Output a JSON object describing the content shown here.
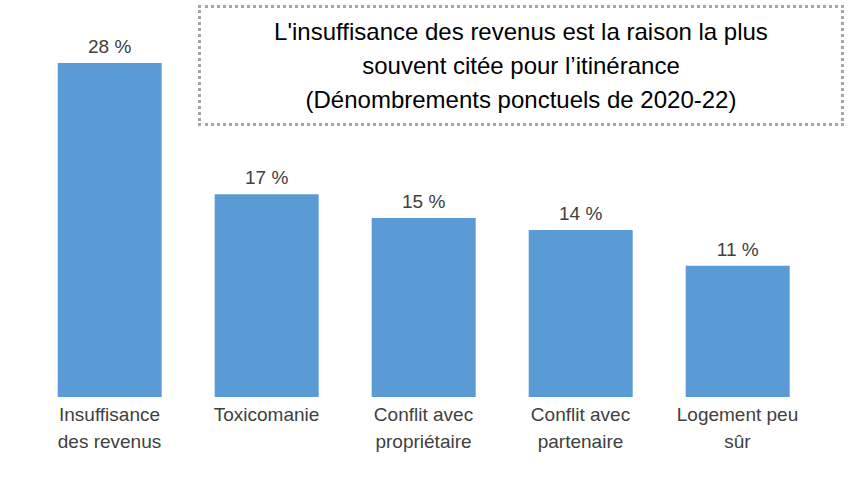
{
  "chart_data": {
    "type": "bar",
    "title": "L'insuffisance des revenus est la raison la plus souvent citée pour l’itinérance",
    "subtitle": "(Dénombrements ponctuels de 2020-22)",
    "categories": [
      "Insuffisance des revenus",
      "Toxicomanie",
      "Conflit avec propriétaire",
      "Conflit avec partenaire",
      "Logement peu sûr"
    ],
    "values": [
      28,
      17,
      15,
      14,
      11
    ],
    "value_labels": [
      "28 %",
      "17 %",
      "15 %",
      "14 %",
      "11 %"
    ],
    "color": "#5b9bd5",
    "data_labels": true,
    "tick_labels": "x",
    "grid": false
  }
}
